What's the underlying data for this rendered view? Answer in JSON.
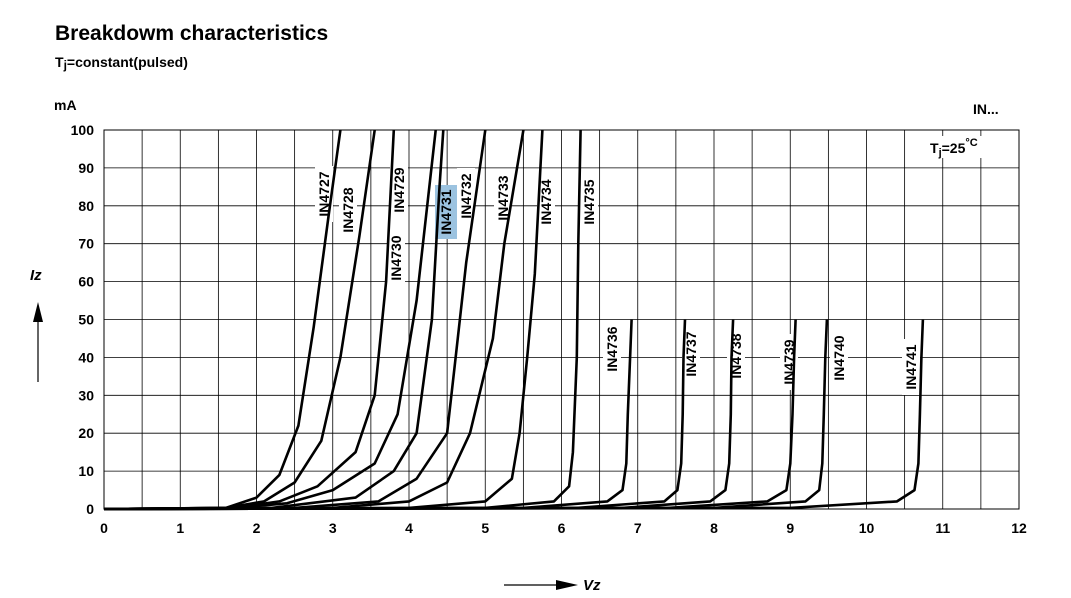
{
  "chart_data": {
    "type": "line",
    "title": "Breakdowm characteristics",
    "subtitle_prefix": "T",
    "subtitle_sub": "j",
    "subtitle_suffix": "=constant(pulsed)",
    "y_unit": "mA",
    "ylabel": "Iz",
    "xlabel": "Vz",
    "top_right_label": "IN...",
    "annotation_prefix": "T",
    "annotation_sub": "j",
    "annotation_value": "=25",
    "annotation_unit": "°C",
    "xlim": [
      0,
      12
    ],
    "ylim": [
      0,
      100
    ],
    "x_ticks": [
      "0",
      "1",
      "2",
      "3",
      "4",
      "5",
      "6",
      "7",
      "8",
      "9",
      "10",
      "11",
      "12"
    ],
    "y_ticks": [
      "0",
      "10",
      "20",
      "30",
      "40",
      "50",
      "60",
      "70",
      "80",
      "90",
      "100"
    ],
    "grid": true,
    "highlight_color": "#9cc3e0",
    "series": [
      {
        "name": "IN4727",
        "x": [
          0,
          1.6,
          2.0,
          2.3,
          2.55,
          2.75,
          2.95,
          3.1
        ],
        "y": [
          0,
          0.3,
          3,
          9,
          22,
          48,
          78,
          100
        ]
      },
      {
        "name": "IN4728",
        "x": [
          0,
          1.6,
          2.1,
          2.5,
          2.85,
          3.1,
          3.35,
          3.55
        ],
        "y": [
          0,
          0.3,
          2,
          7,
          18,
          40,
          72,
          100
        ]
      },
      {
        "name": "IN4729",
        "x": [
          0,
          1.7,
          2.3,
          2.8,
          3.3,
          3.55,
          3.7,
          3.8
        ],
        "y": [
          0,
          0.3,
          2,
          6,
          15,
          30,
          60,
          100
        ]
      },
      {
        "name": "IN4730",
        "x": [
          0,
          1.7,
          2.4,
          3.0,
          3.55,
          3.85,
          4.1,
          4.35
        ],
        "y": [
          0,
          0.3,
          1.5,
          5,
          12,
          25,
          55,
          100
        ]
      },
      {
        "name": "IN4731",
        "x": [
          0,
          2.2,
          3.3,
          3.8,
          4.1,
          4.3,
          4.4,
          4.45
        ],
        "y": [
          0,
          0.3,
          3,
          10,
          20,
          50,
          85,
          100
        ]
      },
      {
        "name": "IN4732",
        "x": [
          0,
          2.5,
          3.6,
          4.1,
          4.5,
          4.6,
          4.75,
          5.0
        ],
        "y": [
          0,
          0.3,
          2,
          8,
          20,
          38,
          65,
          100
        ]
      },
      {
        "name": "IN4733",
        "x": [
          0,
          3.0,
          4.0,
          4.5,
          4.8,
          5.1,
          5.25,
          5.5
        ],
        "y": [
          0,
          0.3,
          2,
          7,
          20,
          45,
          70,
          100
        ]
      },
      {
        "name": "IN4734",
        "x": [
          0,
          4.0,
          5.0,
          5.35,
          5.45,
          5.55,
          5.65,
          5.75
        ],
        "y": [
          0,
          0.3,
          2,
          8,
          20,
          40,
          62,
          100
        ]
      },
      {
        "name": "IN4735",
        "x": [
          0,
          5.0,
          5.9,
          6.1,
          6.15,
          6.2,
          6.22,
          6.25
        ],
        "y": [
          0,
          0.3,
          2,
          6,
          15,
          40,
          70,
          100
        ]
      },
      {
        "name": "IN4736",
        "x": [
          0,
          5.5,
          6.6,
          6.8,
          6.85,
          6.87,
          6.9,
          6.92
        ],
        "y": [
          0,
          0.3,
          2,
          5,
          12,
          25,
          40,
          50
        ]
      },
      {
        "name": "IN4737",
        "x": [
          0,
          6.2,
          7.35,
          7.52,
          7.57,
          7.59,
          7.6,
          7.62
        ],
        "y": [
          0,
          0.3,
          2,
          5,
          12,
          25,
          40,
          50
        ]
      },
      {
        "name": "IN4738",
        "x": [
          0,
          6.8,
          7.95,
          8.15,
          8.2,
          8.22,
          8.23,
          8.25
        ],
        "y": [
          0,
          0.3,
          2,
          5,
          12,
          25,
          40,
          50
        ]
      },
      {
        "name": "IN4739",
        "x": [
          0,
          7.4,
          8.7,
          8.95,
          9.0,
          9.03,
          9.05,
          9.07
        ],
        "y": [
          0,
          0.3,
          2,
          5,
          12,
          25,
          40,
          50
        ]
      },
      {
        "name": "IN4740",
        "x": [
          0,
          8.0,
          9.2,
          9.38,
          9.42,
          9.44,
          9.46,
          9.48
        ],
        "y": [
          0,
          0.3,
          2,
          5,
          12,
          25,
          40,
          50
        ]
      },
      {
        "name": "IN4741",
        "x": [
          0,
          9.0,
          10.4,
          10.63,
          10.68,
          10.7,
          10.72,
          10.74
        ],
        "y": [
          0,
          0.3,
          2,
          5,
          12,
          25,
          40,
          50
        ]
      }
    ]
  }
}
